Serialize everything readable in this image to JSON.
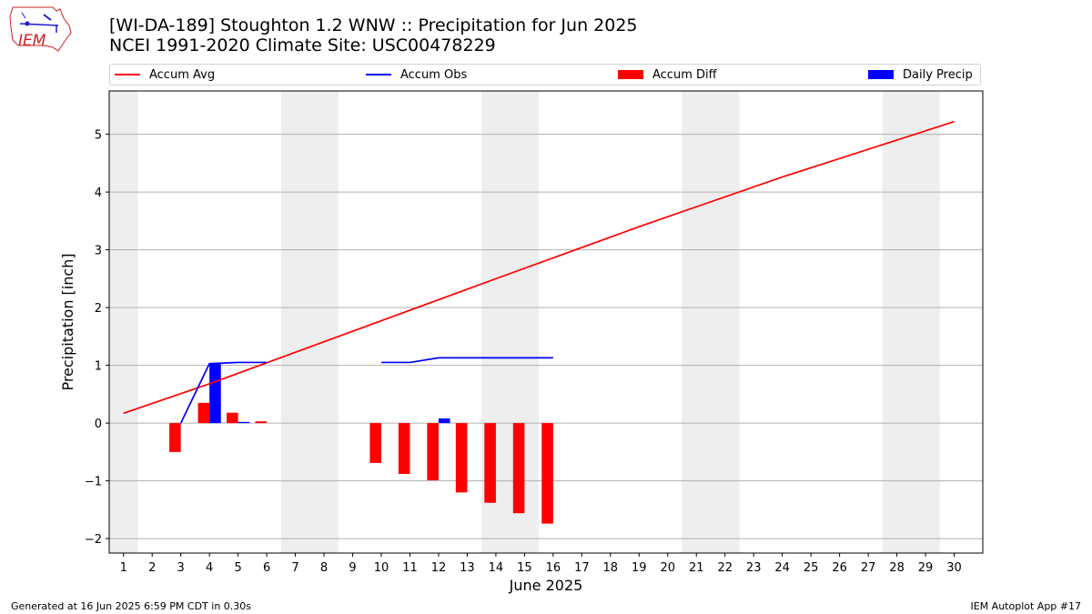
{
  "header": {
    "logo_text": "IEM",
    "title_line1": "[WI-DA-189] Stoughton 1.2 WNW :: Precipitation for Jun 2025",
    "title_line2": "NCEI 1991-2020 Climate Site: USC00478229"
  },
  "legend": {
    "accum_avg": "Accum Avg",
    "accum_obs": "Accum Obs",
    "accum_diff": "Accum Diff",
    "daily_precip": "Daily Precip"
  },
  "footer": {
    "generated": "Generated at 16 Jun 2025 6:59 PM CDT in 0.30s",
    "app": "IEM Autoplot App #17"
  },
  "colors": {
    "avg": "#ff0000",
    "obs": "#0000ff",
    "diff": "#ff0000",
    "precip": "#0000ff",
    "weekend_band": "#eeeeee",
    "grid": "#b0b0b0"
  },
  "chart_data": {
    "type": "bar",
    "xlabel": "June 2025",
    "ylabel": "Precipitation [inch]",
    "xlim": [
      0.5,
      31.0
    ],
    "ylim": [
      -2.25,
      5.75
    ],
    "x_ticks": [
      1,
      2,
      3,
      4,
      5,
      6,
      7,
      8,
      9,
      10,
      11,
      12,
      13,
      14,
      15,
      16,
      17,
      18,
      19,
      20,
      21,
      22,
      23,
      24,
      25,
      26,
      27,
      28,
      29,
      30
    ],
    "y_ticks": [
      -2,
      -1,
      0,
      1,
      2,
      3,
      4,
      5
    ],
    "grid": "horizontal",
    "legend_position": "top",
    "weekend_bands": [
      [
        0.5,
        1.5
      ],
      [
        6.5,
        8.5
      ],
      [
        13.5,
        15.5
      ],
      [
        20.5,
        22.5
      ],
      [
        27.5,
        29.5
      ]
    ],
    "accum_avg": {
      "name": "Accum Avg",
      "days": [
        1,
        4,
        14,
        19,
        24,
        30
      ],
      "values": [
        0.17,
        0.68,
        2.5,
        3.4,
        4.26,
        5.22
      ]
    },
    "accum_obs": {
      "name": "Accum Obs",
      "segments": [
        {
          "days": [
            3,
            4,
            5,
            6
          ],
          "values": [
            0.0,
            1.03,
            1.05,
            1.05
          ]
        },
        {
          "days": [
            10,
            11,
            12,
            13,
            14,
            15,
            16
          ],
          "values": [
            1.05,
            1.05,
            1.13,
            1.13,
            1.13,
            1.13,
            1.13
          ]
        }
      ]
    },
    "accum_diff": {
      "name": "Accum Diff",
      "days": [
        3,
        4,
        5,
        6,
        10,
        11,
        12,
        13,
        14,
        15,
        16
      ],
      "values": [
        -0.5,
        0.35,
        0.18,
        0.03,
        -0.69,
        -0.88,
        -0.99,
        -1.2,
        -1.38,
        -1.56,
        -1.74
      ]
    },
    "daily_precip": {
      "name": "Daily Precip",
      "days": [
        4,
        5,
        12
      ],
      "values": [
        1.03,
        0.02,
        0.08
      ]
    }
  }
}
